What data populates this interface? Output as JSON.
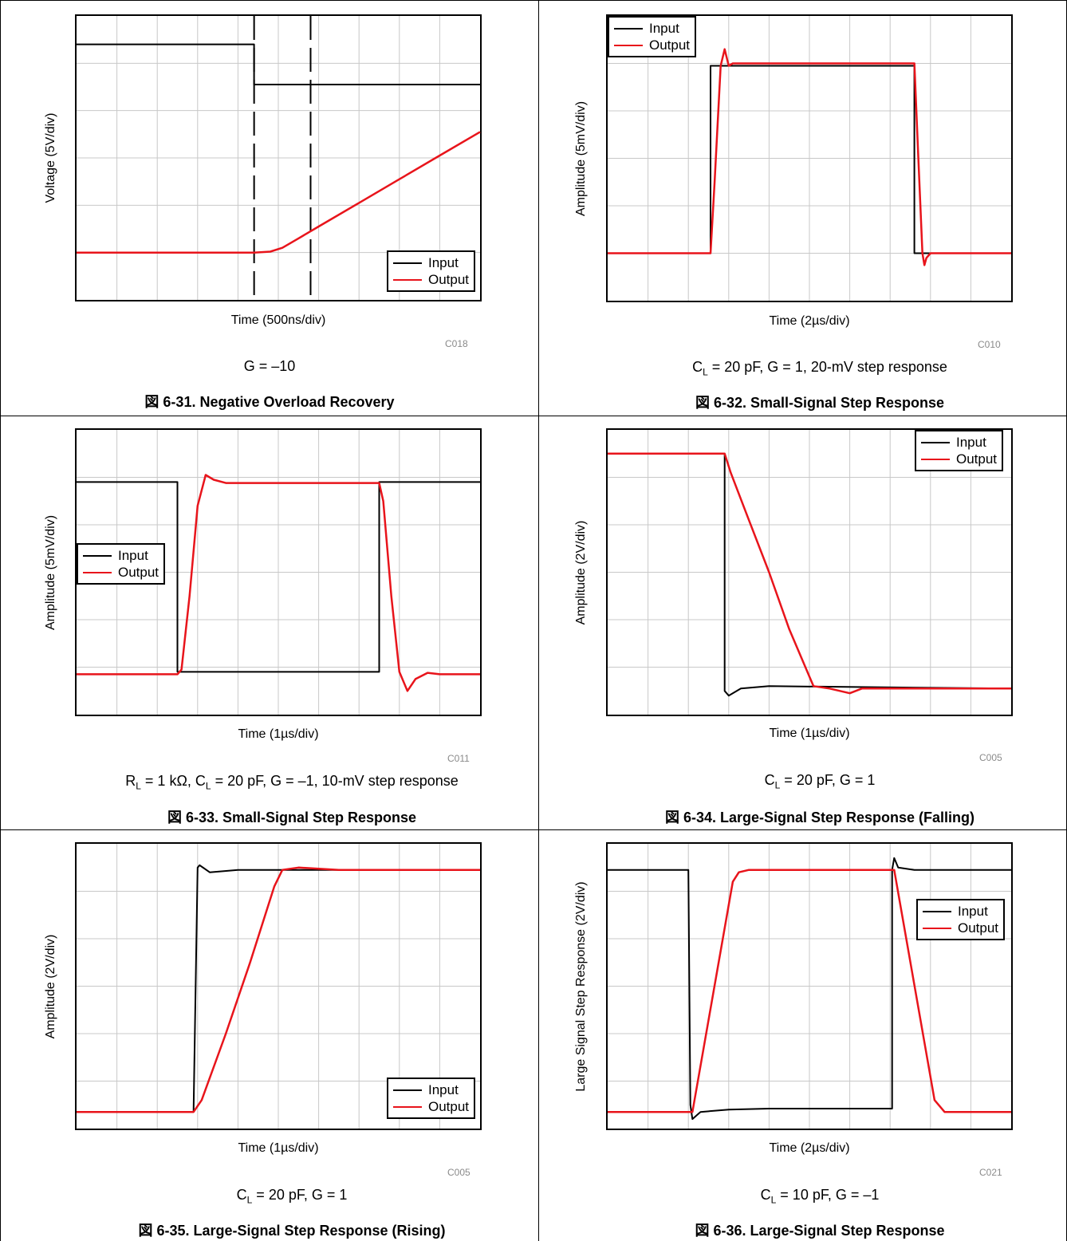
{
  "page": {
    "colors": {
      "input": "#000000",
      "output": "#e8141b",
      "grid": "#c8c8c8",
      "code": "#8a8a8a"
    }
  },
  "figures": [
    {
      "id": "fig31",
      "caption": "図 6-31. Negative Overload Recovery",
      "condition": {
        "text": "G = –10"
      },
      "code": "C018",
      "xlabel": "Time (500ns/div)",
      "ylabel": "Voltage (5V/div)",
      "legend": [
        "Input",
        "Output"
      ]
    },
    {
      "id": "fig32",
      "caption": "図 6-32. Small-Signal Step Response",
      "condition": {
        "p1": "C",
        "s1": "L",
        "p2": " = 20 pF, G = 1, 20-mV step response"
      },
      "code": "C010",
      "xlabel": "Time (2µs/div)",
      "ylabel": "Amplitude (5mV/div)",
      "legend": [
        "Input",
        "Output"
      ]
    },
    {
      "id": "fig33",
      "caption": "図 6-33. Small-Signal Step Response",
      "condition": {
        "p1": "R",
        "s1": "L",
        "p2": " = 1 kΩ, C",
        "s2": "L",
        "p3": " = 20 pF, G = –1, 10-mV step response"
      },
      "code": "C011",
      "xlabel": "Time (1µs/div)",
      "ylabel": "Amplitude (5mV/div)",
      "legend": [
        "Input",
        "Output"
      ]
    },
    {
      "id": "fig34",
      "caption": "図 6-34. Large-Signal Step Response (Falling)",
      "condition": {
        "p1": "C",
        "s1": "L",
        "p2": " = 20 pF, G = 1"
      },
      "code": "C005",
      "xlabel": "Time (1µs/div)",
      "ylabel": "Amplitude (2V/div)",
      "legend": [
        "Input",
        "Output"
      ]
    },
    {
      "id": "fig35",
      "caption": "図 6-35. Large-Signal Step Response (Rising)",
      "condition": {
        "p1": "C",
        "s1": "L",
        "p2": " = 20 pF, G = 1"
      },
      "code": "C005",
      "xlabel": "Time (1µs/div)",
      "ylabel": "Amplitude (2V/div)",
      "legend": [
        "Input",
        "Output"
      ]
    },
    {
      "id": "fig36",
      "caption": "図 6-36. Large-Signal Step Response",
      "condition": {
        "p1": "C",
        "s1": "L",
        "p2": " = 10 pF, G = –1"
      },
      "code": "C021",
      "xlabel": "Time (2µs/div)",
      "ylabel": "Large Signal Step Response (2V/div)",
      "legend": [
        "Input",
        "Output"
      ]
    }
  ],
  "chart_data": [
    {
      "type": "line",
      "xlabel": "Time (500ns/div)",
      "ylabel": "Voltage (5V/div)",
      "x_divisions": 10,
      "y_divisions": 6,
      "xlim": [
        0,
        10
      ],
      "ylim": [
        0,
        6
      ],
      "markers_x": [
        4.4,
        5.8
      ],
      "series": [
        {
          "name": "Input",
          "x": [
            0,
            4.4,
            4.4,
            10
          ],
          "y": [
            5.4,
            5.4,
            4.55,
            4.55
          ]
        },
        {
          "name": "Output",
          "x": [
            0,
            4.4,
            4.8,
            5.1,
            5.5,
            6.0,
            7.0,
            8.0,
            9.0,
            10.0
          ],
          "y": [
            1.0,
            1.0,
            1.02,
            1.1,
            1.3,
            1.55,
            2.05,
            2.55,
            3.05,
            3.55
          ]
        }
      ]
    },
    {
      "type": "line",
      "xlabel": "Time (2µs/div)",
      "ylabel": "Amplitude (5mV/div)",
      "x_divisions": 10,
      "y_divisions": 6,
      "xlim": [
        0,
        10
      ],
      "ylim": [
        0,
        6
      ],
      "series": [
        {
          "name": "Input",
          "x": [
            0,
            2.55,
            2.55,
            7.6,
            7.6,
            10
          ],
          "y": [
            1.0,
            1.0,
            4.95,
            4.95,
            1.0,
            1.0
          ]
        },
        {
          "name": "Output",
          "x": [
            0,
            2.55,
            2.65,
            2.8,
            2.9,
            3.0,
            3.1,
            3.3,
            7.6,
            7.7,
            7.8,
            7.85,
            7.9,
            8.0,
            8.1,
            10
          ],
          "y": [
            1.0,
            1.0,
            2.5,
            4.95,
            5.3,
            4.95,
            5.0,
            5.0,
            5.0,
            3.0,
            1.0,
            0.75,
            0.9,
            1.0,
            1.0,
            1.0
          ]
        }
      ]
    },
    {
      "type": "line",
      "xlabel": "Time (1µs/div)",
      "ylabel": "Amplitude (5mV/div)",
      "x_divisions": 10,
      "y_divisions": 6,
      "xlim": [
        0,
        10
      ],
      "ylim": [
        0,
        6
      ],
      "series": [
        {
          "name": "Input",
          "x": [
            0,
            2.5,
            2.5,
            7.5,
            7.5,
            10
          ],
          "y": [
            4.9,
            4.9,
            0.9,
            0.9,
            4.9,
            4.9
          ]
        },
        {
          "name": "Output",
          "x": [
            0,
            2.5,
            2.6,
            2.8,
            3.0,
            3.2,
            3.4,
            3.7,
            4.0,
            7.5,
            7.6,
            7.8,
            8.0,
            8.2,
            8.4,
            8.7,
            9.0,
            10
          ],
          "y": [
            0.85,
            0.85,
            0.95,
            2.5,
            4.4,
            5.05,
            4.95,
            4.88,
            4.88,
            4.88,
            4.5,
            2.5,
            0.9,
            0.5,
            0.75,
            0.88,
            0.85,
            0.85
          ]
        }
      ]
    },
    {
      "type": "line",
      "xlabel": "Time (1µs/div)",
      "ylabel": "Amplitude (2V/div)",
      "x_divisions": 10,
      "y_divisions": 6,
      "xlim": [
        0,
        10
      ],
      "ylim": [
        0,
        6
      ],
      "series": [
        {
          "name": "Input",
          "x": [
            0,
            2.9,
            2.9,
            3.0,
            3.3,
            4.0,
            10
          ],
          "y": [
            5.5,
            5.5,
            0.5,
            0.4,
            0.55,
            0.6,
            0.55
          ]
        },
        {
          "name": "Output",
          "x": [
            0,
            2.9,
            3.05,
            3.5,
            4.0,
            4.5,
            5.1,
            5.5,
            6.0,
            6.3,
            7.0,
            10
          ],
          "y": [
            5.5,
            5.5,
            5.1,
            4.1,
            3.0,
            1.8,
            0.6,
            0.55,
            0.45,
            0.55,
            0.55,
            0.55
          ]
        }
      ]
    },
    {
      "type": "line",
      "xlabel": "Time (1µs/div)",
      "ylabel": "Amplitude (2V/div)",
      "x_divisions": 10,
      "y_divisions": 6,
      "xlim": [
        0,
        10
      ],
      "ylim": [
        0,
        6
      ],
      "series": [
        {
          "name": "Input",
          "x": [
            0,
            2.9,
            3.0,
            3.05,
            3.3,
            4.0,
            10
          ],
          "y": [
            0.35,
            0.35,
            5.5,
            5.55,
            5.4,
            5.45,
            5.45
          ]
        },
        {
          "name": "Output",
          "x": [
            0,
            2.9,
            3.1,
            3.7,
            4.3,
            4.9,
            5.1,
            5.5,
            6.5,
            10
          ],
          "y": [
            0.35,
            0.35,
            0.6,
            2.0,
            3.5,
            5.1,
            5.45,
            5.5,
            5.45,
            5.45
          ]
        }
      ]
    },
    {
      "type": "line",
      "xlabel": "Time (2µs/div)",
      "ylabel": "Large Signal Step Response (2V/div)",
      "x_divisions": 10,
      "y_divisions": 6,
      "xlim": [
        0,
        10
      ],
      "ylim": [
        0,
        6
      ],
      "series": [
        {
          "name": "Input",
          "x": [
            0,
            2.0,
            2.05,
            2.1,
            2.3,
            3.0,
            4.0,
            7.05,
            7.05,
            7.1,
            7.2,
            7.6,
            8.0,
            10
          ],
          "y": [
            5.45,
            5.45,
            0.5,
            0.2,
            0.35,
            0.4,
            0.42,
            0.42,
            5.45,
            5.7,
            5.5,
            5.45,
            5.45,
            5.45
          ]
        },
        {
          "name": "Output",
          "x": [
            0,
            2.1,
            3.1,
            3.25,
            3.5,
            7.0,
            7.1,
            8.1,
            8.35,
            8.6,
            10
          ],
          "y": [
            0.35,
            0.35,
            5.2,
            5.4,
            5.45,
            5.45,
            5.45,
            0.6,
            0.35,
            0.35,
            0.35
          ]
        }
      ]
    }
  ]
}
